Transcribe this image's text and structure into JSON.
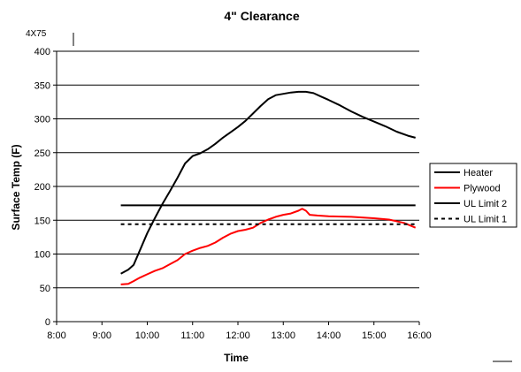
{
  "chart_data": {
    "type": "line",
    "title": "4\" Clearance",
    "corner_note": "4X75",
    "xlabel": "Time",
    "ylabel": "Surface Temp (F)",
    "xlim": [
      "8:00",
      "16:00"
    ],
    "ylim": [
      0,
      400
    ],
    "x_ticks": [
      "8:00",
      "9:00",
      "10:00",
      "11:00",
      "12:00",
      "13:00",
      "14:00",
      "15:00",
      "16:00"
    ],
    "y_ticks": [
      0,
      50,
      100,
      150,
      200,
      250,
      300,
      350,
      400
    ],
    "grid": "horizontal",
    "legend": "right",
    "series": [
      {
        "name": "Heater",
        "color": "#000000",
        "dash": "solid",
        "points": [
          [
            "9:25",
            71
          ],
          [
            "9:35",
            77
          ],
          [
            "9:42",
            84
          ],
          [
            "9:50",
            105
          ],
          [
            "10:00",
            131
          ],
          [
            "10:10",
            153
          ],
          [
            "10:20",
            174
          ],
          [
            "10:30",
            193
          ],
          [
            "10:40",
            213
          ],
          [
            "10:50",
            234
          ],
          [
            "11:00",
            245
          ],
          [
            "11:10",
            249
          ],
          [
            "11:20",
            255
          ],
          [
            "11:30",
            263
          ],
          [
            "11:40",
            272
          ],
          [
            "11:50",
            280
          ],
          [
            "12:00",
            288
          ],
          [
            "12:10",
            297
          ],
          [
            "12:20",
            308
          ],
          [
            "12:30",
            319
          ],
          [
            "12:40",
            329
          ],
          [
            "12:50",
            335
          ],
          [
            "13:00",
            337
          ],
          [
            "13:10",
            339
          ],
          [
            "13:20",
            340
          ],
          [
            "13:30",
            340
          ],
          [
            "13:40",
            338
          ],
          [
            "13:50",
            333
          ],
          [
            "14:00",
            328
          ],
          [
            "14:15",
            320
          ],
          [
            "14:30",
            311
          ],
          [
            "14:45",
            303
          ],
          [
            "15:00",
            296
          ],
          [
            "15:15",
            289
          ],
          [
            "15:30",
            281
          ],
          [
            "15:45",
            275
          ],
          [
            "15:55",
            272
          ]
        ]
      },
      {
        "name": "Plywood",
        "color": "#ff0000",
        "dash": "solid",
        "points": [
          [
            "9:25",
            55
          ],
          [
            "9:35",
            56
          ],
          [
            "9:42",
            60
          ],
          [
            "9:50",
            65
          ],
          [
            "10:00",
            70
          ],
          [
            "10:10",
            75
          ],
          [
            "10:20",
            79
          ],
          [
            "10:30",
            85
          ],
          [
            "10:40",
            91
          ],
          [
            "10:50",
            100
          ],
          [
            "11:00",
            105
          ],
          [
            "11:10",
            109
          ],
          [
            "11:20",
            112
          ],
          [
            "11:30",
            117
          ],
          [
            "11:40",
            124
          ],
          [
            "11:50",
            130
          ],
          [
            "12:00",
            134
          ],
          [
            "12:10",
            136
          ],
          [
            "12:20",
            139
          ],
          [
            "12:30",
            146
          ],
          [
            "12:40",
            151
          ],
          [
            "12:50",
            155
          ],
          [
            "13:00",
            158
          ],
          [
            "13:10",
            160
          ],
          [
            "13:20",
            164
          ],
          [
            "13:25",
            167
          ],
          [
            "13:30",
            164
          ],
          [
            "13:35",
            158
          ],
          [
            "13:45",
            157
          ],
          [
            "14:00",
            156
          ],
          [
            "14:30",
            155
          ],
          [
            "15:00",
            153
          ],
          [
            "15:20",
            151
          ],
          [
            "15:40",
            146
          ],
          [
            "15:55",
            139
          ]
        ]
      },
      {
        "name": "UL Limit 2",
        "color": "#000000",
        "dash": "solid",
        "points": [
          [
            "9:25",
            172
          ],
          [
            "15:55",
            172
          ]
        ]
      },
      {
        "name": "UL Limit 1",
        "color": "#000000",
        "dash": "dashed",
        "points": [
          [
            "9:25",
            144
          ],
          [
            "15:55",
            144
          ]
        ]
      }
    ]
  }
}
